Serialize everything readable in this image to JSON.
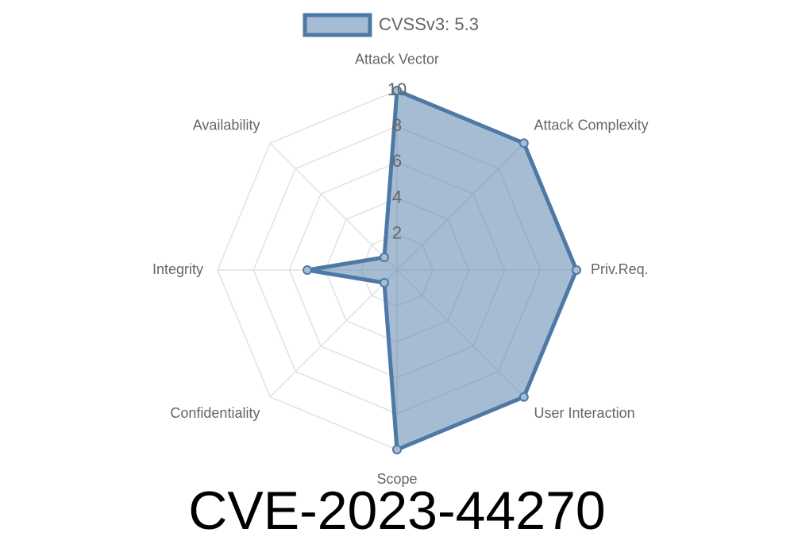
{
  "chart_data": {
    "type": "radar",
    "title": "CVE-2023-44270",
    "categories": [
      "Attack Vector",
      "Attack Complexity",
      "Priv.Req.",
      "User Interaction",
      "Scope",
      "Confidentiality",
      "Integrity",
      "Availability"
    ],
    "series": [
      {
        "name": "CVSSv3: 5.3",
        "color": "#4e79a7",
        "values": [
          10,
          10,
          10,
          10,
          10,
          1,
          5,
          1
        ]
      }
    ],
    "ylim": [
      0,
      10
    ],
    "yticks": [
      2,
      4,
      6,
      8,
      10
    ],
    "grid": true,
    "legend": "top"
  }
}
